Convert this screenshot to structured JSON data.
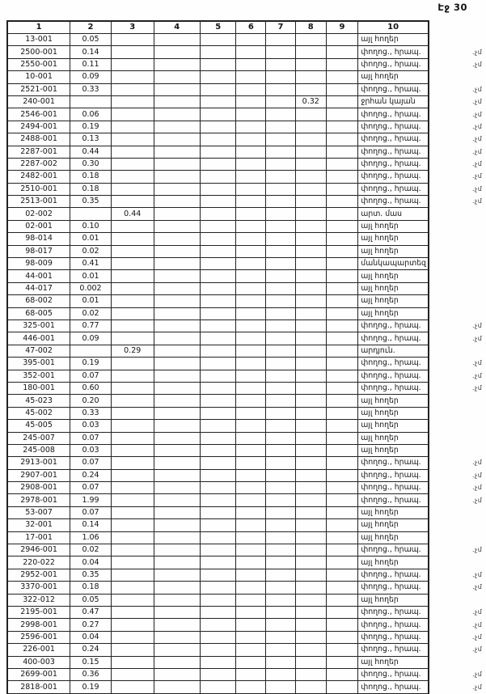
{
  "page_label": "Էջ 30",
  "margin_note": ".չմ",
  "colors": {
    "paper": "#fefefe",
    "ink": "#1a1a1a",
    "border": "#222222"
  },
  "table": {
    "headers": [
      "1",
      "2",
      "3",
      "4",
      "5",
      "6",
      "7",
      "8",
      "9",
      "10"
    ],
    "rows": [
      {
        "id": "13-001",
        "v2": "0.05",
        "v3": "",
        "v8": "",
        "use": "այլ հողեր",
        "note": false
      },
      {
        "id": "2500-001",
        "v2": "0.14",
        "v3": "",
        "v8": "",
        "use": "փողոց., հրապ.",
        "note": true
      },
      {
        "id": "2550-001",
        "v2": "0.11",
        "v3": "",
        "v8": "",
        "use": "փողոց., հրապ.",
        "note": true
      },
      {
        "id": "10-001",
        "v2": "0.09",
        "v3": "",
        "v8": "",
        "use": "այլ հողեր",
        "note": false
      },
      {
        "id": "2521-001",
        "v2": "0.33",
        "v3": "",
        "v8": "",
        "use": "փողոց., հրապ.",
        "note": true
      },
      {
        "id": "240-001",
        "v2": "",
        "v3": "",
        "v8": "0.32",
        "use": "ջրհան կայան",
        "note": true
      },
      {
        "id": "2546-001",
        "v2": "0.06",
        "v3": "",
        "v8": "",
        "use": "փողոց., հրապ.",
        "note": true
      },
      {
        "id": "2494-001",
        "v2": "0.19",
        "v3": "",
        "v8": "",
        "use": "փողոց., հրապ.",
        "note": true
      },
      {
        "id": "2488-001",
        "v2": "0.13",
        "v3": "",
        "v8": "",
        "use": "փողոց., հրապ.",
        "note": true
      },
      {
        "id": "2287-001",
        "v2": "0.44",
        "v3": "",
        "v8": "",
        "use": "փողոց., հրապ.",
        "note": true
      },
      {
        "id": "2287-002",
        "v2": "0.30",
        "v3": "",
        "v8": "",
        "use": "փողոց., հրապ.",
        "note": true
      },
      {
        "id": "2482-001",
        "v2": "0.18",
        "v3": "",
        "v8": "",
        "use": "փողոց., հրապ.",
        "note": true
      },
      {
        "id": "2510-001",
        "v2": "0.18",
        "v3": "",
        "v8": "",
        "use": "փողոց., հրապ.",
        "note": true
      },
      {
        "id": "2513-001",
        "v2": "0.35",
        "v3": "",
        "v8": "",
        "use": "փողոց., հրապ.",
        "note": true
      },
      {
        "id": "02-002",
        "v2": "",
        "v3": "0.44",
        "v8": "",
        "use": "արտ. մաս",
        "note": false
      },
      {
        "id": "02-001",
        "v2": "0.10",
        "v3": "",
        "v8": "",
        "use": "այլ հողեր",
        "note": false
      },
      {
        "id": "98-014",
        "v2": "0.01",
        "v3": "",
        "v8": "",
        "use": "այլ հողեր",
        "note": false
      },
      {
        "id": "98-017",
        "v2": "0.02",
        "v3": "",
        "v8": "",
        "use": "այլ հողեր",
        "note": false
      },
      {
        "id": "98-009",
        "v2": "0.41",
        "v3": "",
        "v8": "",
        "use": "մանկապարտեզ",
        "note": false
      },
      {
        "id": "44-001",
        "v2": "0.01",
        "v3": "",
        "v8": "",
        "use": "այլ հողեր",
        "note": false
      },
      {
        "id": "44-017",
        "v2": "0.002",
        "v3": "",
        "v8": "",
        "use": "այլ հողեր",
        "note": false
      },
      {
        "id": "68-002",
        "v2": "0.01",
        "v3": "",
        "v8": "",
        "use": "այլ հողեր",
        "note": false
      },
      {
        "id": "68-005",
        "v2": "0.02",
        "v3": "",
        "v8": "",
        "use": "այլ հողեր",
        "note": false
      },
      {
        "id": "325-001",
        "v2": "0.77",
        "v3": "",
        "v8": "",
        "use": "փողոց., հրապ.",
        "note": true
      },
      {
        "id": "446-001",
        "v2": "0.09",
        "v3": "",
        "v8": "",
        "use": "փողոց., հրապ.",
        "note": true
      },
      {
        "id": "47-002",
        "v2": "",
        "v3": "0.29",
        "v8": "",
        "use": "արդյուն.",
        "note": false
      },
      {
        "id": "395-001",
        "v2": "0.19",
        "v3": "",
        "v8": "",
        "use": "փողոց., հրապ.",
        "note": true
      },
      {
        "id": "352-001",
        "v2": "0.07",
        "v3": "",
        "v8": "",
        "use": "փողոց., հրապ.",
        "note": true
      },
      {
        "id": "180-001",
        "v2": "0.60",
        "v3": "",
        "v8": "",
        "use": "փողոց., հրապ.",
        "note": true
      },
      {
        "id": "45-023",
        "v2": "0.20",
        "v3": "",
        "v8": "",
        "use": "այլ հողեր",
        "note": false
      },
      {
        "id": "45-002",
        "v2": "0.33",
        "v3": "",
        "v8": "",
        "use": "այլ հողեր",
        "note": false
      },
      {
        "id": "45-005",
        "v2": "0.03",
        "v3": "",
        "v8": "",
        "use": "այլ հողեր",
        "note": false
      },
      {
        "id": "245-007",
        "v2": "0.07",
        "v3": "",
        "v8": "",
        "use": "այլ հողեր",
        "note": false
      },
      {
        "id": "245-008",
        "v2": "0.03",
        "v3": "",
        "v8": "",
        "use": "այլ հողեր",
        "note": false
      },
      {
        "id": "2913-001",
        "v2": "0.07",
        "v3": "",
        "v8": "",
        "use": "փողոց., հրապ.",
        "note": true
      },
      {
        "id": "2907-001",
        "v2": "0.24",
        "v3": "",
        "v8": "",
        "use": "փողոց., հրապ.",
        "note": true
      },
      {
        "id": "2908-001",
        "v2": "0.07",
        "v3": "",
        "v8": "",
        "use": "փողոց., հրապ.",
        "note": true
      },
      {
        "id": "2978-001",
        "v2": "1.99",
        "v3": "",
        "v8": "",
        "use": "փողոց., հրապ.",
        "note": true
      },
      {
        "id": "53-007",
        "v2": "0.07",
        "v3": "",
        "v8": "",
        "use": "այլ հողեր",
        "note": false
      },
      {
        "id": "32-001",
        "v2": "0.14",
        "v3": "",
        "v8": "",
        "use": "այլ հողեր",
        "note": false
      },
      {
        "id": "17-001",
        "v2": "1.06",
        "v3": "",
        "v8": "",
        "use": "այլ հողեր",
        "note": false
      },
      {
        "id": "2946-001",
        "v2": "0.02",
        "v3": "",
        "v8": "",
        "use": "փողոց., հրապ.",
        "note": true
      },
      {
        "id": "220-022",
        "v2": "0.04",
        "v3": "",
        "v8": "",
        "use": "այլ հողեր",
        "note": false
      },
      {
        "id": "2952-001",
        "v2": "0.35",
        "v3": "",
        "v8": "",
        "use": "փողոց., հրապ.",
        "note": true
      },
      {
        "id": "3370-001",
        "v2": "0.18",
        "v3": "",
        "v8": "",
        "use": "փողոց., հրապ.",
        "note": true
      },
      {
        "id": "322-012",
        "v2": "0.05",
        "v3": "",
        "v8": "",
        "use": "այլ հողեր",
        "note": false
      },
      {
        "id": "2195-001",
        "v2": "0.47",
        "v3": "",
        "v8": "",
        "use": "փողոց., հրապ.",
        "note": true
      },
      {
        "id": "2998-001",
        "v2": "0.27",
        "v3": "",
        "v8": "",
        "use": "փողոց., հրապ.",
        "note": true
      },
      {
        "id": "2596-001",
        "v2": "0.04",
        "v3": "",
        "v8": "",
        "use": "փողոց., հրապ.",
        "note": true
      },
      {
        "id": "226-001",
        "v2": "0.24",
        "v3": "",
        "v8": "",
        "use": "փողոց., հրապ.",
        "note": true
      },
      {
        "id": "400-003",
        "v2": "0.15",
        "v3": "",
        "v8": "",
        "use": "այլ հողեր",
        "note": false
      },
      {
        "id": "2699-001",
        "v2": "0.36",
        "v3": "",
        "v8": "",
        "use": "փողոց., հրապ.",
        "note": true
      },
      {
        "id": "2818-001",
        "v2": "0.19",
        "v3": "",
        "v8": "",
        "use": "փողոց., հրապ.",
        "note": true
      }
    ]
  }
}
